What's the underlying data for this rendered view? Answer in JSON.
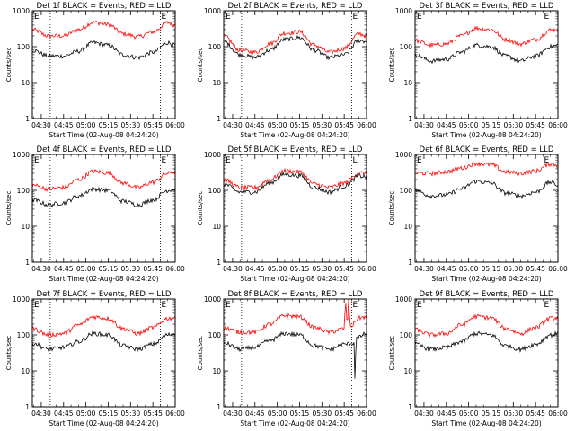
{
  "colors": {
    "background": "#ffffff",
    "axes": "#000000",
    "events": "#000000",
    "lld": "#ff0000"
  },
  "shared": {
    "ylabel": "Counts/sec",
    "xlabel": "Start Time (02-Aug-08 04:24:20)",
    "xticks": [
      "04:30",
      "04:45",
      "05:00",
      "05:15",
      "05:30",
      "05:45",
      "06:00"
    ],
    "yticks": [
      "1",
      "10",
      "100",
      "1000"
    ],
    "marker_left": "E",
    "marker_right": "E"
  },
  "chart_data": [
    {
      "type": "line",
      "title": "Det 1f BLACK = Events, RED = LLD",
      "yscale": "log",
      "ylim": [
        1,
        1000
      ],
      "xlim": [
        "04:24",
        "06:00"
      ],
      "vlines": [
        "04:36",
        "05:50"
      ],
      "marker_right_alt": "",
      "series": [
        {
          "name": "Events",
          "color": "#000000",
          "x": [
            "04:24",
            "04:35",
            "04:45",
            "04:55",
            "05:05",
            "05:15",
            "05:25",
            "05:35",
            "05:45",
            "05:55",
            "06:00"
          ],
          "values": [
            80,
            55,
            55,
            75,
            130,
            110,
            60,
            50,
            70,
            130,
            110
          ]
        },
        {
          "name": "LLD",
          "color": "#ff0000",
          "x": [
            "04:24",
            "04:35",
            "04:45",
            "04:55",
            "05:05",
            "05:15",
            "05:25",
            "05:35",
            "05:45",
            "05:55",
            "06:00"
          ],
          "values": [
            300,
            200,
            200,
            300,
            480,
            420,
            230,
            190,
            260,
            470,
            400
          ]
        }
      ]
    },
    {
      "type": "line",
      "title": "Det 2f BLACK = Events, RED = LLD",
      "yscale": "log",
      "ylim": [
        1,
        1000
      ],
      "xlim": [
        "04:24",
        "06:00"
      ],
      "vlines": [
        "04:36",
        "05:50"
      ],
      "marker_right_alt": "",
      "series": [
        {
          "name": "Events",
          "color": "#000000",
          "x": [
            "04:24",
            "04:35",
            "04:45",
            "04:55",
            "05:05",
            "05:15",
            "05:25",
            "05:35",
            "05:45",
            "05:55",
            "06:00"
          ],
          "values": [
            140,
            60,
            50,
            80,
            160,
            180,
            80,
            50,
            60,
            150,
            140
          ]
        },
        {
          "name": "LLD",
          "color": "#ff0000",
          "x": [
            "04:24",
            "04:35",
            "04:45",
            "04:55",
            "05:05",
            "05:15",
            "05:25",
            "05:35",
            "05:45",
            "05:55",
            "06:00"
          ],
          "values": [
            200,
            80,
            70,
            120,
            240,
            260,
            110,
            70,
            90,
            230,
            200
          ]
        }
      ]
    },
    {
      "type": "line",
      "title": "Det 3f BLACK = Events, RED = LLD",
      "yscale": "log",
      "ylim": [
        1,
        1000
      ],
      "xlim": [
        "04:24",
        "06:00"
      ],
      "vlines": [],
      "marker_right_alt": "",
      "series": [
        {
          "name": "Events",
          "color": "#000000",
          "x": [
            "04:24",
            "04:35",
            "04:45",
            "04:55",
            "05:05",
            "05:15",
            "05:25",
            "05:35",
            "05:45",
            "05:55",
            "06:00"
          ],
          "values": [
            60,
            40,
            45,
            70,
            110,
            100,
            55,
            40,
            55,
            100,
            110
          ]
        },
        {
          "name": "LLD",
          "color": "#ff0000",
          "x": [
            "04:24",
            "04:35",
            "04:45",
            "04:55",
            "05:05",
            "05:15",
            "05:25",
            "05:35",
            "05:45",
            "05:55",
            "06:00"
          ],
          "values": [
            150,
            110,
            120,
            200,
            330,
            300,
            160,
            120,
            160,
            290,
            300
          ]
        }
      ]
    },
    {
      "type": "line",
      "title": "Det 4f BLACK = Events, RED = LLD",
      "yscale": "log",
      "ylim": [
        1,
        1000
      ],
      "xlim": [
        "04:24",
        "06:00"
      ],
      "vlines": [
        "04:36",
        "05:50"
      ],
      "marker_right_alt": "",
      "series": [
        {
          "name": "Events",
          "color": "#000000",
          "x": [
            "04:24",
            "04:35",
            "04:45",
            "04:55",
            "05:05",
            "05:15",
            "05:25",
            "05:35",
            "05:45",
            "05:55",
            "06:00"
          ],
          "values": [
            55,
            40,
            45,
            70,
            110,
            100,
            50,
            40,
            55,
            100,
            110
          ]
        },
        {
          "name": "LLD",
          "color": "#ff0000",
          "x": [
            "04:24",
            "04:35",
            "04:45",
            "04:55",
            "05:05",
            "05:15",
            "05:25",
            "05:35",
            "05:45",
            "05:55",
            "06:00"
          ],
          "values": [
            140,
            110,
            120,
            200,
            340,
            310,
            160,
            120,
            170,
            300,
            330
          ]
        }
      ]
    },
    {
      "type": "line",
      "title": "Det 5f BLACK = Events, RED = LLD",
      "yscale": "log",
      "ylim": [
        1,
        1000
      ],
      "xlim": [
        "04:24",
        "06:00"
      ],
      "vlines": [
        "04:36",
        "05:50"
      ],
      "marker_right_alt": "L",
      "series": [
        {
          "name": "Events",
          "color": "#000000",
          "x": [
            "04:24",
            "04:35",
            "04:45",
            "04:55",
            "05:05",
            "05:15",
            "05:25",
            "05:35",
            "05:45",
            "05:55",
            "06:00"
          ],
          "values": [
            150,
            90,
            90,
            160,
            280,
            260,
            120,
            90,
            130,
            250,
            240
          ]
        },
        {
          "name": "LLD",
          "color": "#ff0000",
          "x": [
            "04:24",
            "04:35",
            "04:45",
            "04:55",
            "05:05",
            "05:15",
            "05:25",
            "05:35",
            "05:45",
            "05:55",
            "06:00"
          ],
          "values": [
            200,
            120,
            120,
            200,
            350,
            330,
            150,
            120,
            160,
            310,
            300
          ]
        }
      ]
    },
    {
      "type": "line",
      "title": "Det 6f BLACK = Events, RED = LLD",
      "yscale": "log",
      "ylim": [
        1,
        1000
      ],
      "xlim": [
        "04:24",
        "06:00"
      ],
      "vlines": [],
      "marker_right_alt": "",
      "series": [
        {
          "name": "Events",
          "color": "#000000",
          "x": [
            "04:24",
            "04:35",
            "04:45",
            "04:55",
            "05:05",
            "05:15",
            "05:25",
            "05:35",
            "05:45",
            "05:55",
            "06:00"
          ],
          "values": [
            100,
            70,
            75,
            110,
            180,
            160,
            85,
            70,
            90,
            170,
            140
          ]
        },
        {
          "name": "LLD",
          "color": "#ff0000",
          "x": [
            "04:24",
            "04:35",
            "04:45",
            "04:55",
            "05:05",
            "05:15",
            "05:25",
            "05:35",
            "05:45",
            "05:55",
            "06:00"
          ],
          "values": [
            300,
            300,
            330,
            420,
            560,
            520,
            330,
            300,
            350,
            550,
            500
          ]
        }
      ]
    },
    {
      "type": "line",
      "title": "Det 7f BLACK = Events, RED = LLD",
      "yscale": "log",
      "ylim": [
        1,
        1000
      ],
      "xlim": [
        "04:24",
        "06:00"
      ],
      "vlines": [
        "04:36",
        "05:50"
      ],
      "marker_right_alt": "",
      "series": [
        {
          "name": "Events",
          "color": "#000000",
          "x": [
            "04:24",
            "04:35",
            "04:45",
            "04:55",
            "05:05",
            "05:15",
            "05:25",
            "05:35",
            "05:45",
            "05:55",
            "06:00"
          ],
          "values": [
            60,
            40,
            45,
            65,
            110,
            100,
            50,
            40,
            55,
            100,
            110
          ]
        },
        {
          "name": "LLD",
          "color": "#ff0000",
          "x": [
            "04:24",
            "04:35",
            "04:45",
            "04:55",
            "05:05",
            "05:15",
            "05:25",
            "05:35",
            "05:45",
            "05:55",
            "06:00"
          ],
          "values": [
            150,
            100,
            110,
            190,
            320,
            290,
            150,
            110,
            160,
            290,
            300
          ]
        }
      ]
    },
    {
      "type": "line",
      "title": "Det 8f BLACK = Events, RED = LLD",
      "yscale": "log",
      "ylim": [
        1,
        1000
      ],
      "xlim": [
        "04:24",
        "06:00"
      ],
      "vlines": [
        "04:36",
        "05:50"
      ],
      "marker_right_alt": "",
      "series": [
        {
          "name": "Events",
          "color": "#000000",
          "x": [
            "04:24",
            "04:35",
            "04:45",
            "04:55",
            "05:05",
            "05:15",
            "05:25",
            "05:35",
            "05:45",
            "05:52",
            "05:52",
            "05:53",
            "06:00"
          ],
          "values": [
            60,
            40,
            45,
            70,
            110,
            100,
            50,
            40,
            55,
            60,
            4,
            80,
            110
          ]
        },
        {
          "name": "LLD",
          "color": "#ff0000",
          "x": [
            "04:24",
            "04:35",
            "04:45",
            "04:55",
            "05:05",
            "05:15",
            "05:25",
            "05:35",
            "05:45",
            "05:46",
            "05:47",
            "05:48",
            "05:49",
            "05:55",
            "06:00"
          ],
          "values": [
            160,
            120,
            120,
            200,
            350,
            320,
            160,
            120,
            150,
            1000,
            150,
            1000,
            170,
            300,
            320
          ]
        }
      ]
    },
    {
      "type": "line",
      "title": "Det 9f BLACK = Events, RED = LLD",
      "yscale": "log",
      "ylim": [
        1,
        1000
      ],
      "xlim": [
        "04:24",
        "06:00"
      ],
      "vlines": [],
      "marker_right_alt": "",
      "series": [
        {
          "name": "Events",
          "color": "#000000",
          "x": [
            "04:24",
            "04:35",
            "04:45",
            "04:55",
            "05:05",
            "05:15",
            "05:25",
            "05:35",
            "05:45",
            "05:55",
            "06:00"
          ],
          "values": [
            55,
            40,
            45,
            65,
            110,
            100,
            50,
            40,
            55,
            100,
            110
          ]
        },
        {
          "name": "LLD",
          "color": "#ff0000",
          "x": [
            "04:24",
            "04:35",
            "04:45",
            "04:55",
            "05:05",
            "05:15",
            "05:25",
            "05:35",
            "05:45",
            "05:55",
            "06:00"
          ],
          "values": [
            140,
            100,
            110,
            190,
            330,
            300,
            150,
            110,
            160,
            290,
            300
          ]
        }
      ]
    }
  ]
}
